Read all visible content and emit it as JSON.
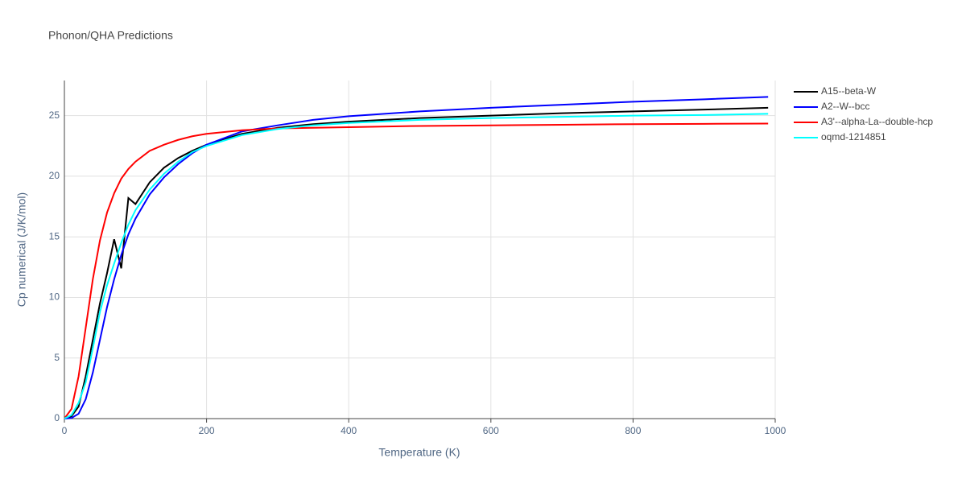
{
  "chart_data": {
    "type": "line",
    "title": "Phonon/QHA Predictions",
    "x_label": "Temperature (K)",
    "y_label": "Cp numerical (J/K/mol)",
    "x": [
      0,
      10,
      20,
      30,
      40,
      50,
      60,
      70,
      80,
      90,
      100,
      120,
      140,
      160,
      180,
      200,
      250,
      300,
      350,
      400,
      500,
      600,
      700,
      800,
      900,
      990
    ],
    "series": [
      {
        "name": "A15--beta-W",
        "color": "#000000",
        "values": [
          0,
          0.2,
          1.0,
          3.5,
          6.5,
          9.5,
          12.0,
          14.8,
          12.4,
          18.2,
          17.7,
          19.5,
          20.7,
          21.5,
          22.1,
          22.6,
          23.5,
          24.0,
          24.3,
          24.5,
          24.8,
          25.0,
          25.2,
          25.35,
          25.5,
          25.65
        ]
      },
      {
        "name": "A2--W--bcc",
        "color": "#0000ff",
        "values": [
          0,
          0.05,
          0.4,
          1.6,
          3.8,
          6.5,
          9.2,
          11.5,
          13.5,
          15.2,
          16.5,
          18.5,
          19.9,
          21.0,
          21.9,
          22.6,
          23.7,
          24.2,
          24.65,
          24.95,
          25.35,
          25.65,
          25.9,
          26.15,
          26.35,
          26.55
        ]
      },
      {
        "name": "A3'--alpha-La--double-hcp",
        "color": "#ff0000",
        "values": [
          0,
          0.8,
          3.5,
          7.5,
          11.5,
          14.7,
          17.0,
          18.6,
          19.8,
          20.6,
          21.2,
          22.1,
          22.6,
          23.0,
          23.3,
          23.5,
          23.8,
          23.95,
          24.0,
          24.05,
          24.15,
          24.2,
          24.25,
          24.3,
          24.32,
          24.35
        ]
      },
      {
        "name": "oqmd-1214851",
        "color": "#00ffff",
        "values": [
          0,
          0.3,
          1.3,
          3.0,
          5.8,
          8.8,
          11.0,
          12.8,
          14.5,
          16.0,
          17.2,
          18.9,
          20.2,
          21.2,
          22.0,
          22.5,
          23.4,
          23.9,
          24.2,
          24.4,
          24.65,
          24.8,
          24.9,
          25.0,
          25.05,
          25.15
        ]
      }
    ],
    "xlim": [
      0,
      1000
    ],
    "xticks": [
      0,
      200,
      400,
      600,
      800,
      1000
    ],
    "ylim": [
      0,
      27.9
    ],
    "yticks": [
      0,
      5,
      10,
      15,
      20,
      25
    ],
    "grid": true,
    "legend": "right"
  }
}
